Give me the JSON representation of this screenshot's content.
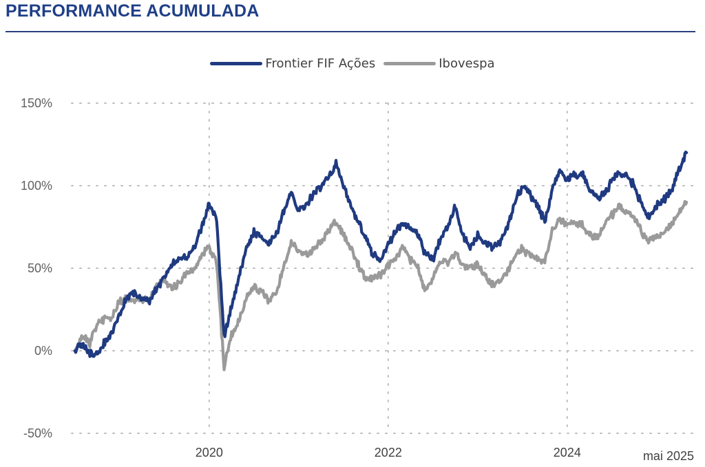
{
  "header": {
    "title": "PERFORMANCE ACUMULADA"
  },
  "chart_data": {
    "type": "line",
    "title": "PERFORMANCE ACUMULADA",
    "xlabel": "",
    "ylabel": "",
    "y_unit": "%",
    "ylim": [
      -50,
      150
    ],
    "yticks": [
      -50,
      0,
      50,
      100,
      150
    ],
    "ytick_labels": [
      "-50%",
      "0%",
      "50%",
      "100%",
      "150%"
    ],
    "xlim": [
      "2018-06",
      "2025-06"
    ],
    "xticks": [
      "2020-01",
      "2022-01",
      "2024-01"
    ],
    "xtick_labels": [
      "2020",
      "2022",
      "2024"
    ],
    "end_label": "mai 2025",
    "grid": true,
    "legend_position": "top-center",
    "series": [
      {
        "name": "Frontier FIF Ações",
        "color": "#1f3a80",
        "points": [
          [
            "2018-07",
            0
          ],
          [
            "2018-08",
            4
          ],
          [
            "2018-09",
            -1
          ],
          [
            "2018-10",
            -3
          ],
          [
            "2018-11",
            5
          ],
          [
            "2018-12",
            12
          ],
          [
            "2019-01",
            22
          ],
          [
            "2019-02",
            33
          ],
          [
            "2019-03",
            35
          ],
          [
            "2019-04",
            31
          ],
          [
            "2019-05",
            30
          ],
          [
            "2019-06",
            38
          ],
          [
            "2019-07",
            45
          ],
          [
            "2019-08",
            52
          ],
          [
            "2019-09",
            55
          ],
          [
            "2019-10",
            57
          ],
          [
            "2019-11",
            62
          ],
          [
            "2019-12",
            75
          ],
          [
            "2020-01",
            89
          ],
          [
            "2020-02",
            80
          ],
          [
            "2020-03",
            8
          ],
          [
            "2020-04",
            28
          ],
          [
            "2020-05",
            45
          ],
          [
            "2020-06",
            62
          ],
          [
            "2020-07",
            72
          ],
          [
            "2020-08",
            68
          ],
          [
            "2020-09",
            65
          ],
          [
            "2020-10",
            70
          ],
          [
            "2020-11",
            85
          ],
          [
            "2020-12",
            95
          ],
          [
            "2021-01",
            85
          ],
          [
            "2021-02",
            88
          ],
          [
            "2021-03",
            95
          ],
          [
            "2021-04",
            100
          ],
          [
            "2021-05",
            105
          ],
          [
            "2021-06",
            113
          ],
          [
            "2021-07",
            100
          ],
          [
            "2021-08",
            88
          ],
          [
            "2021-09",
            78
          ],
          [
            "2021-10",
            68
          ],
          [
            "2021-11",
            58
          ],
          [
            "2021-12",
            55
          ],
          [
            "2022-01",
            65
          ],
          [
            "2022-02",
            72
          ],
          [
            "2022-03",
            78
          ],
          [
            "2022-04",
            75
          ],
          [
            "2022-05",
            70
          ],
          [
            "2022-06",
            58
          ],
          [
            "2022-07",
            55
          ],
          [
            "2022-08",
            68
          ],
          [
            "2022-09",
            75
          ],
          [
            "2022-10",
            88
          ],
          [
            "2022-11",
            70
          ],
          [
            "2022-12",
            63
          ],
          [
            "2023-01",
            70
          ],
          [
            "2023-02",
            66
          ],
          [
            "2023-03",
            63
          ],
          [
            "2023-04",
            66
          ],
          [
            "2023-05",
            75
          ],
          [
            "2023-06",
            90
          ],
          [
            "2023-07",
            100
          ],
          [
            "2023-08",
            95
          ],
          [
            "2023-09",
            88
          ],
          [
            "2023-10",
            78
          ],
          [
            "2023-11",
            98
          ],
          [
            "2023-12",
            110
          ],
          [
            "2024-01",
            104
          ],
          [
            "2024-02",
            106
          ],
          [
            "2024-03",
            108
          ],
          [
            "2024-04",
            98
          ],
          [
            "2024-05",
            92
          ],
          [
            "2024-06",
            95
          ],
          [
            "2024-07",
            103
          ],
          [
            "2024-08",
            108
          ],
          [
            "2024-09",
            106
          ],
          [
            "2024-10",
            100
          ],
          [
            "2024-11",
            88
          ],
          [
            "2024-12",
            80
          ],
          [
            "2025-01",
            88
          ],
          [
            "2025-02",
            92
          ],
          [
            "2025-03",
            98
          ],
          [
            "2025-04",
            110
          ],
          [
            "2025-05",
            120
          ]
        ]
      },
      {
        "name": "Ibovespa",
        "color": "#9a9a9a",
        "points": [
          [
            "2018-07",
            0
          ],
          [
            "2018-08",
            8
          ],
          [
            "2018-09",
            5
          ],
          [
            "2018-10",
            16
          ],
          [
            "2018-11",
            20
          ],
          [
            "2018-12",
            20
          ],
          [
            "2019-01",
            30
          ],
          [
            "2019-02",
            32
          ],
          [
            "2019-03",
            30
          ],
          [
            "2019-04",
            32
          ],
          [
            "2019-05",
            30
          ],
          [
            "2019-06",
            40
          ],
          [
            "2019-07",
            43
          ],
          [
            "2019-08",
            37
          ],
          [
            "2019-09",
            42
          ],
          [
            "2019-10",
            47
          ],
          [
            "2019-11",
            50
          ],
          [
            "2019-12",
            58
          ],
          [
            "2020-01",
            62
          ],
          [
            "2020-02",
            54
          ],
          [
            "2020-03",
            -10
          ],
          [
            "2020-04",
            10
          ],
          [
            "2020-05",
            18
          ],
          [
            "2020-06",
            32
          ],
          [
            "2020-07",
            38
          ],
          [
            "2020-08",
            36
          ],
          [
            "2020-09",
            30
          ],
          [
            "2020-10",
            35
          ],
          [
            "2020-11",
            50
          ],
          [
            "2020-12",
            66
          ],
          [
            "2021-01",
            60
          ],
          [
            "2021-02",
            58
          ],
          [
            "2021-03",
            62
          ],
          [
            "2021-04",
            66
          ],
          [
            "2021-05",
            73
          ],
          [
            "2021-06",
            78
          ],
          [
            "2021-07",
            70
          ],
          [
            "2021-08",
            62
          ],
          [
            "2021-09",
            52
          ],
          [
            "2021-10",
            44
          ],
          [
            "2021-11",
            44
          ],
          [
            "2021-12",
            46
          ],
          [
            "2022-01",
            52
          ],
          [
            "2022-02",
            56
          ],
          [
            "2022-03",
            64
          ],
          [
            "2022-04",
            55
          ],
          [
            "2022-05",
            50
          ],
          [
            "2022-06",
            36
          ],
          [
            "2022-07",
            44
          ],
          [
            "2022-08",
            55
          ],
          [
            "2022-09",
            54
          ],
          [
            "2022-10",
            60
          ],
          [
            "2022-11",
            52
          ],
          [
            "2022-12",
            50
          ],
          [
            "2023-01",
            52
          ],
          [
            "2023-02",
            45
          ],
          [
            "2023-03",
            40
          ],
          [
            "2023-04",
            42
          ],
          [
            "2023-05",
            48
          ],
          [
            "2023-06",
            58
          ],
          [
            "2023-07",
            62
          ],
          [
            "2023-08",
            58
          ],
          [
            "2023-09",
            56
          ],
          [
            "2023-10",
            54
          ],
          [
            "2023-11",
            72
          ],
          [
            "2023-12",
            80
          ],
          [
            "2024-01",
            76
          ],
          [
            "2024-02",
            78
          ],
          [
            "2024-03",
            76
          ],
          [
            "2024-04",
            70
          ],
          [
            "2024-05",
            68
          ],
          [
            "2024-06",
            76
          ],
          [
            "2024-07",
            82
          ],
          [
            "2024-08",
            88
          ],
          [
            "2024-09",
            84
          ],
          [
            "2024-10",
            80
          ],
          [
            "2024-11",
            72
          ],
          [
            "2024-12",
            66
          ],
          [
            "2025-01",
            70
          ],
          [
            "2025-02",
            72
          ],
          [
            "2025-03",
            76
          ],
          [
            "2025-04",
            84
          ],
          [
            "2025-05",
            90
          ]
        ]
      }
    ]
  }
}
